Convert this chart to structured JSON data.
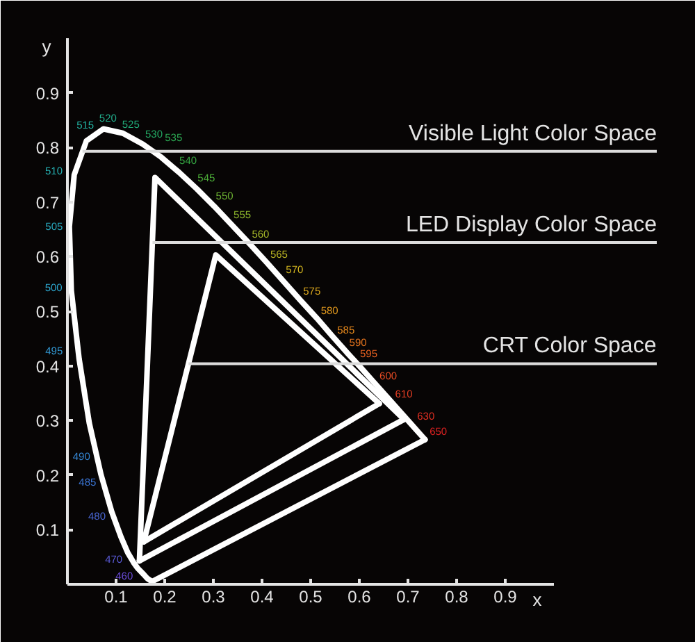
{
  "chart_data": {
    "type": "line",
    "xlabel": "x",
    "ylabel": "y",
    "xlim": [
      0,
      1
    ],
    "ylim": [
      0,
      1
    ],
    "xticks": [
      0.1,
      0.2,
      0.3,
      0.4,
      0.5,
      0.6,
      0.7,
      0.8,
      0.9
    ],
    "yticks": [
      0.1,
      0.2,
      0.3,
      0.4,
      0.5,
      0.6,
      0.7,
      0.8,
      0.9
    ],
    "line_style": "solid",
    "series": [
      {
        "color": "#ffffff",
        "x": [
          0.174,
          0.164,
          0.157,
          0.144,
          0.136,
          0.124,
          0.11,
          0.091,
          0.069,
          0.045,
          0.024,
          0.008,
          0.004,
          0.014,
          0.039,
          0.074,
          0.114,
          0.155,
          0.193,
          0.23,
          0.266,
          0.302,
          0.337,
          0.373,
          0.409,
          0.444,
          0.479,
          0.513,
          0.545,
          0.575,
          0.603,
          0.627,
          0.666,
          0.708,
          0.726,
          0.735
        ],
        "values": [
          0.005,
          0.011,
          0.018,
          0.03,
          0.04,
          0.058,
          0.087,
          0.133,
          0.201,
          0.295,
          0.413,
          0.538,
          0.655,
          0.75,
          0.812,
          0.834,
          0.826,
          0.806,
          0.782,
          0.754,
          0.724,
          0.692,
          0.659,
          0.625,
          0.59,
          0.555,
          0.52,
          0.487,
          0.454,
          0.424,
          0.397,
          0.373,
          0.334,
          0.292,
          0.274,
          0.265
        ]
      },
      {
        "color": "#ffffff",
        "x": [
          0.174,
          0.735
        ],
        "values": [
          0.005,
          0.265
        ]
      },
      {
        "color": "#ffffff",
        "x": [
          0.148,
          0.18,
          0.692
        ],
        "values": [
          0.043,
          0.745,
          0.302
        ]
      },
      {
        "color": "#ffffff",
        "x": [
          0.148,
          0.692
        ],
        "values": [
          0.043,
          0.302
        ]
      },
      {
        "color": "#ffffff",
        "x": [
          0.157,
          0.305,
          0.641
        ],
        "values": [
          0.078,
          0.603,
          0.331
        ]
      },
      {
        "color": "#ffffff",
        "x": [
          0.157,
          0.641
        ],
        "values": [
          0.078,
          0.331
        ]
      }
    ],
    "annotations": [
      {
        "text": "Visible Light Color Space",
        "x": 0.031,
        "y": 0.793
      },
      {
        "text": "LED Display Color Space",
        "x": 0.175,
        "y": 0.626
      },
      {
        "text": "CRT Color Space",
        "x": 0.249,
        "y": 0.404
      },
      {
        "text": "460",
        "x": 0.144,
        "y": 0.03
      },
      {
        "text": "470",
        "x": 0.124,
        "y": 0.058
      },
      {
        "text": "480",
        "x": 0.091,
        "y": 0.133
      },
      {
        "text": "485",
        "x": 0.069,
        "y": 0.201
      },
      {
        "text": "490",
        "x": 0.045,
        "y": 0.295
      },
      {
        "text": "495",
        "x": 0.024,
        "y": 0.413
      },
      {
        "text": "500",
        "x": 0.008,
        "y": 0.538
      },
      {
        "text": "505",
        "x": 0.004,
        "y": 0.655
      },
      {
        "text": "510",
        "x": 0.014,
        "y": 0.75
      },
      {
        "text": "515",
        "x": 0.039,
        "y": 0.812
      },
      {
        "text": "520",
        "x": 0.074,
        "y": 0.834
      },
      {
        "text": "525",
        "x": 0.114,
        "y": 0.826
      },
      {
        "text": "530",
        "x": 0.155,
        "y": 0.806
      },
      {
        "text": "535",
        "x": 0.193,
        "y": 0.782
      },
      {
        "text": "540",
        "x": 0.23,
        "y": 0.754
      },
      {
        "text": "545",
        "x": 0.266,
        "y": 0.724
      },
      {
        "text": "550",
        "x": 0.302,
        "y": 0.692
      },
      {
        "text": "555",
        "x": 0.337,
        "y": 0.659
      },
      {
        "text": "560",
        "x": 0.373,
        "y": 0.625
      },
      {
        "text": "565",
        "x": 0.409,
        "y": 0.59
      },
      {
        "text": "570",
        "x": 0.444,
        "y": 0.555
      },
      {
        "text": "575",
        "x": 0.479,
        "y": 0.52
      },
      {
        "text": "580",
        "x": 0.513,
        "y": 0.487
      },
      {
        "text": "585",
        "x": 0.545,
        "y": 0.454
      },
      {
        "text": "590",
        "x": 0.575,
        "y": 0.424
      },
      {
        "text": "595",
        "x": 0.603,
        "y": 0.397
      },
      {
        "text": "600",
        "x": 0.627,
        "y": 0.373
      },
      {
        "text": "610",
        "x": 0.666,
        "y": 0.334
      },
      {
        "text": "630",
        "x": 0.708,
        "y": 0.292
      },
      {
        "text": "650",
        "x": 0.726,
        "y": 0.274
      }
    ]
  }
}
